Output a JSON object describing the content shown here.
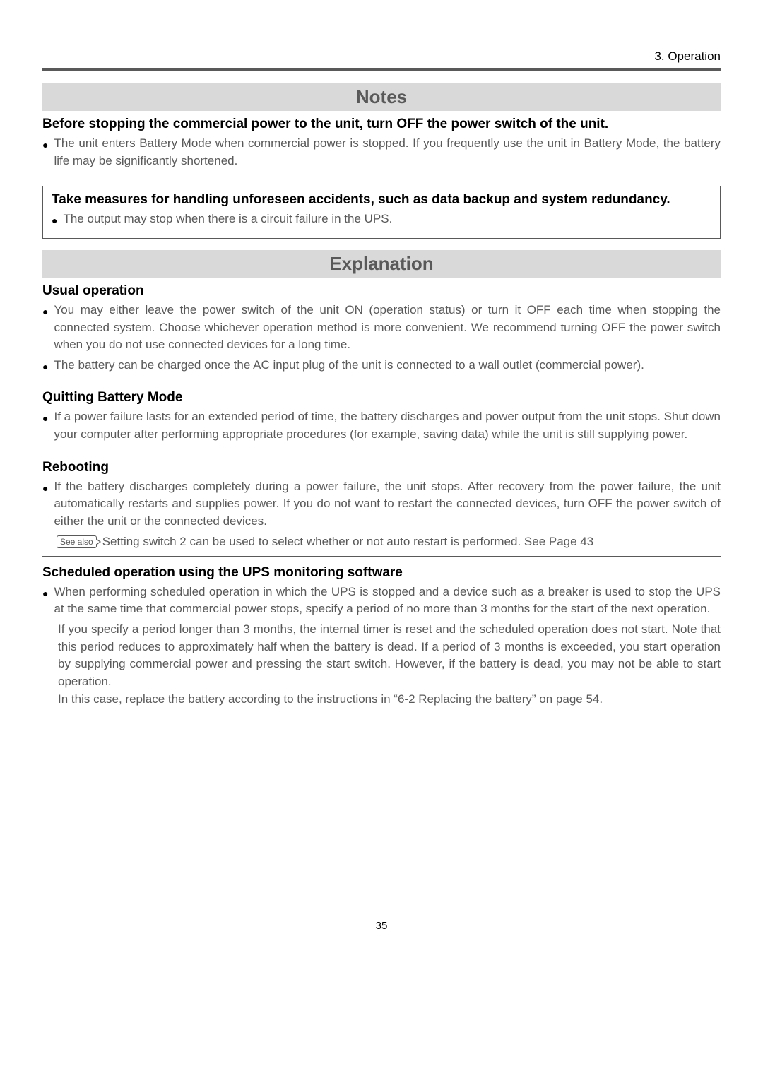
{
  "chapter": "3. Operation",
  "notes": {
    "heading": "Notes",
    "before_stop": {
      "title": "Before stopping the commercial power to the unit, turn OFF the power switch of the unit.",
      "bullet": "The unit enters Battery Mode when commercial power is stopped. If you frequently use the unit in Battery Mode, the battery life may be significantly shortened."
    },
    "measures": {
      "title": "Take measures for handling unforeseen accidents, such as data backup and system redundancy.",
      "bullet": "The output may stop when there is a circuit failure in the UPS."
    }
  },
  "explanation": {
    "heading": "Explanation",
    "usual": {
      "title": "Usual operation",
      "b1": "You may either leave the power switch of the unit ON (operation status) or turn it OFF each time when stopping the connected system. Choose whichever operation method is more convenient. We recommend turning OFF the power switch when you do not use connected devices for a long time.",
      "b2": "The battery can be charged once the AC input plug of the unit is connected to a wall outlet (commercial power)."
    },
    "quitting": {
      "title": "Quitting Battery Mode",
      "b1": "If a power failure lasts for an extended period of time, the battery discharges and power output from the unit stops. Shut down your computer after performing appropriate procedures (for example, saving data) while the unit is still supplying power."
    },
    "rebooting": {
      "title": "Rebooting",
      "b1": "If the battery discharges completely during a power failure, the unit stops. After recovery from the power failure, the unit automatically restarts and supplies power. If you do not want to restart the connected devices, turn OFF the power switch of either the unit or the connected devices.",
      "see_also_label": "See also",
      "see_also_text": "Setting switch 2 can be used to select whether or not auto restart is performed.  See Page 43"
    },
    "scheduled": {
      "title": "Scheduled operation using the UPS monitoring software",
      "b1": "When performing scheduled operation in which the UPS is stopped and a device such as a breaker is used to stop the UPS at the same time that commercial power stops, specify a period of no more than 3 months for the start of the next operation.",
      "p2": "If you specify a period longer than 3 months, the internal timer is reset and the scheduled operation does not start. Note that this period reduces to approximately half when the battery is dead. If a period of 3 months is exceeded, you start operation by supplying commercial power and pressing the start switch. However, if the battery is dead, you may not be able to start operation.",
      "p3": "In this case, replace the battery according to the instructions in “6-2 Replacing the battery” on page 54."
    }
  },
  "page_number": "35"
}
